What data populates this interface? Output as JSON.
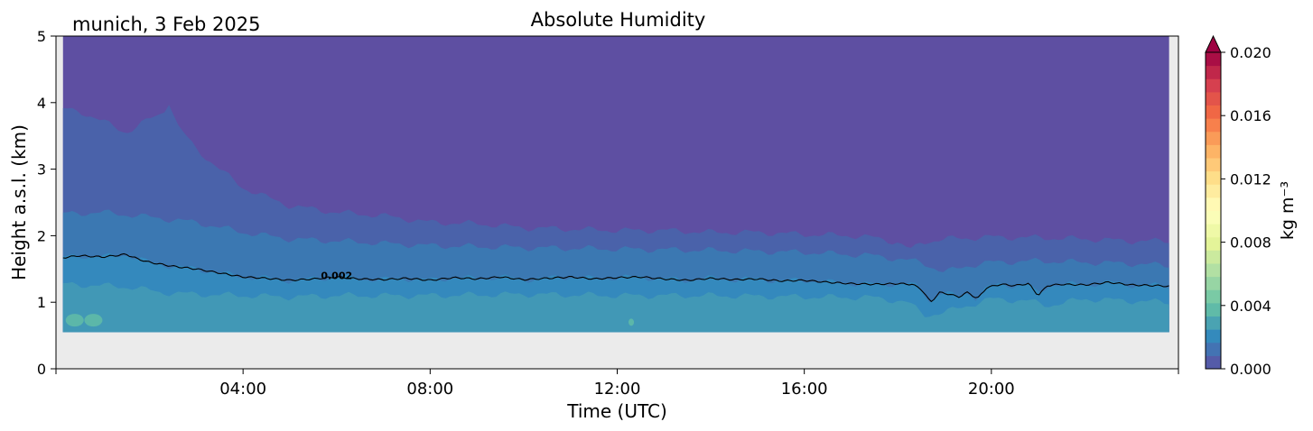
{
  "chart_data": {
    "type": "heatmap",
    "title": "Absolute Humidity",
    "location_label": "munich, 3 Feb 2025",
    "xlabel": "Time (UTC)",
    "ylabel": "Height a.s.l. (km)",
    "x_unit": "hours UTC",
    "xlim": [
      0,
      24
    ],
    "ylim": [
      0,
      5
    ],
    "x_ticks": [
      4,
      8,
      12,
      16,
      20
    ],
    "x_tick_labels": [
      "04:00",
      "08:00",
      "12:00",
      "16:00",
      "20:00"
    ],
    "y_ticks": [
      0,
      1,
      2,
      3,
      4,
      5
    ],
    "y_tick_labels": [
      "0",
      "1",
      "2",
      "3",
      "4",
      "5"
    ],
    "data_time_range": [
      0.15,
      23.8
    ],
    "data_height_range": [
      0.55,
      5.0
    ],
    "colorbar": {
      "label": "kg m⁻³",
      "range": [
        0.0,
        0.02
      ],
      "ticks": [
        0.0,
        0.004,
        0.008,
        0.012,
        0.016,
        0.02
      ],
      "tick_labels": [
        "0.000",
        "0.004",
        "0.008",
        "0.012",
        "0.016",
        "0.020"
      ],
      "extend": "max",
      "colormap": "Spectral_r",
      "levels": 24
    },
    "fill_bands": [
      {
        "min": 0.0,
        "max": 0.001,
        "color": "#5e4fa2"
      },
      {
        "min": 0.001,
        "max": 0.0015,
        "color": "#4a62aa"
      },
      {
        "min": 0.0015,
        "max": 0.002,
        "color": "#3b78b2"
      },
      {
        "min": 0.002,
        "max": 0.003,
        "color": "#3489bd"
      },
      {
        "min": 0.003,
        "max": 0.004,
        "color": "#4198b6"
      },
      {
        "min": 0.004,
        "max": 0.005,
        "color": "#5cb7a9"
      }
    ],
    "background_color": "#ebebeb",
    "contour": {
      "level": 0.002,
      "label": "0.002",
      "label_time": 6.0,
      "label_height": 1.4,
      "times": [
        0.15,
        0.5,
        1.0,
        1.5,
        1.75,
        2.0,
        2.5,
        3.0,
        3.5,
        4.0,
        4.5,
        5.0,
        5.5,
        6.0,
        6.5,
        7.0,
        7.5,
        8.0,
        8.5,
        9.0,
        9.5,
        10.0,
        10.5,
        11.0,
        11.5,
        12.0,
        12.5,
        13.0,
        13.5,
        14.0,
        14.5,
        15.0,
        15.5,
        16.0,
        16.5,
        17.0,
        17.5,
        18.0,
        18.3,
        18.5,
        18.7,
        18.9,
        19.1,
        19.3,
        19.5,
        19.7,
        19.9,
        20.2,
        20.5,
        20.8,
        21.0,
        21.2,
        21.5,
        22.0,
        22.5,
        23.0,
        23.5,
        23.8
      ],
      "heights": [
        1.67,
        1.7,
        1.68,
        1.72,
        1.65,
        1.6,
        1.54,
        1.5,
        1.44,
        1.38,
        1.36,
        1.33,
        1.35,
        1.38,
        1.35,
        1.34,
        1.36,
        1.33,
        1.37,
        1.35,
        1.38,
        1.34,
        1.36,
        1.38,
        1.35,
        1.37,
        1.38,
        1.35,
        1.33,
        1.36,
        1.34,
        1.35,
        1.32,
        1.33,
        1.3,
        1.28,
        1.27,
        1.28,
        1.27,
        1.2,
        1.0,
        1.15,
        1.12,
        1.08,
        1.15,
        1.05,
        1.22,
        1.27,
        1.25,
        1.28,
        1.1,
        1.25,
        1.27,
        1.26,
        1.3,
        1.26,
        1.25,
        1.24
      ]
    },
    "band_tops": [
      {
        "band": 1,
        "times": [
          0.15,
          0.5,
          1.0,
          1.5,
          2.0,
          2.3,
          2.4,
          2.6,
          3.0,
          3.5,
          4.0,
          4.5,
          5.0,
          6.0,
          7.0,
          8.0,
          9.0,
          10.0,
          11.0,
          12.0,
          13.0,
          14.0,
          15.0,
          16.0,
          17.0,
          17.5,
          18.0,
          18.3,
          18.5,
          19.0,
          20.0,
          21.0,
          22.0,
          23.0,
          23.8
        ],
        "heights": [
          3.9,
          3.87,
          3.72,
          3.55,
          3.75,
          3.85,
          4.05,
          3.65,
          3.3,
          3.0,
          2.72,
          2.58,
          2.45,
          2.35,
          2.3,
          2.2,
          2.18,
          2.12,
          2.1,
          2.08,
          2.08,
          2.05,
          2.05,
          2.02,
          2.0,
          1.97,
          1.9,
          1.78,
          1.9,
          1.95,
          1.98,
          1.97,
          1.95,
          1.92,
          1.92
        ]
      },
      {
        "band": 2,
        "times": [
          0.15,
          1.0,
          2.0,
          3.0,
          4.0,
          5.0,
          6.0,
          8.0,
          10.0,
          12.0,
          14.0,
          16.0,
          17.5,
          18.5,
          19.0,
          19.5,
          20.0,
          21.0,
          22.0,
          23.0,
          23.8
        ],
        "heights": [
          2.33,
          2.35,
          2.28,
          2.2,
          2.05,
          1.95,
          1.92,
          1.85,
          1.82,
          1.8,
          1.78,
          1.75,
          1.7,
          1.6,
          1.45,
          1.55,
          1.6,
          1.62,
          1.6,
          1.58,
          1.55
        ]
      },
      {
        "band": 4,
        "times": [
          0.15,
          1.0,
          1.7,
          2.2,
          3.0,
          4.0,
          5.0,
          6.0,
          8.0,
          10.0,
          12.0,
          14.0,
          16.0,
          17.5,
          18.2,
          18.6,
          19.0,
          19.5,
          20.0,
          20.8,
          21.2,
          22.0,
          23.0,
          23.8
        ],
        "heights": [
          1.27,
          1.25,
          1.22,
          1.15,
          1.12,
          1.1,
          1.08,
          1.1,
          1.1,
          1.12,
          1.1,
          1.1,
          1.08,
          1.07,
          1.0,
          0.8,
          0.85,
          0.95,
          1.05,
          1.02,
          0.95,
          1.05,
          1.02,
          1.0
        ]
      }
    ],
    "patches": [
      {
        "band": 5,
        "time": 0.4,
        "height": 0.73
      },
      {
        "band": 5,
        "time": 0.8,
        "height": 0.73
      },
      {
        "band": 5,
        "time": 12.3,
        "height": 0.7
      }
    ]
  }
}
